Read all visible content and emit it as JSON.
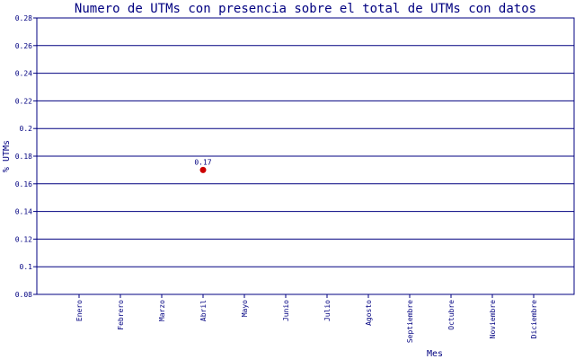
{
  "chart_data": {
    "type": "scatter",
    "title": "Numero de UTMs con presencia sobre el total de UTMs con datos",
    "xlabel": "Mes",
    "ylabel": "% UTMs",
    "categories": [
      "Enero",
      "Febrero",
      "Marzo",
      "Abril",
      "Mayo",
      "Junio",
      "Julio",
      "Agosto",
      "Septiembre",
      "Octubre",
      "Noviembre",
      "Diciembre"
    ],
    "yticks": [
      "0.08",
      "0.1",
      "0.12",
      "0.14",
      "0.16",
      "0.18",
      "0.2",
      "0.22",
      "0.24",
      "0.26",
      "0.28"
    ],
    "ylim": [
      0.08,
      0.28
    ],
    "grid": true,
    "points": [
      {
        "x": "Abril",
        "y": 0.17,
        "label": "0.17"
      }
    ],
    "colors": {
      "axis": "#000080",
      "point": "#cc0000",
      "background": "#ffffff"
    }
  }
}
